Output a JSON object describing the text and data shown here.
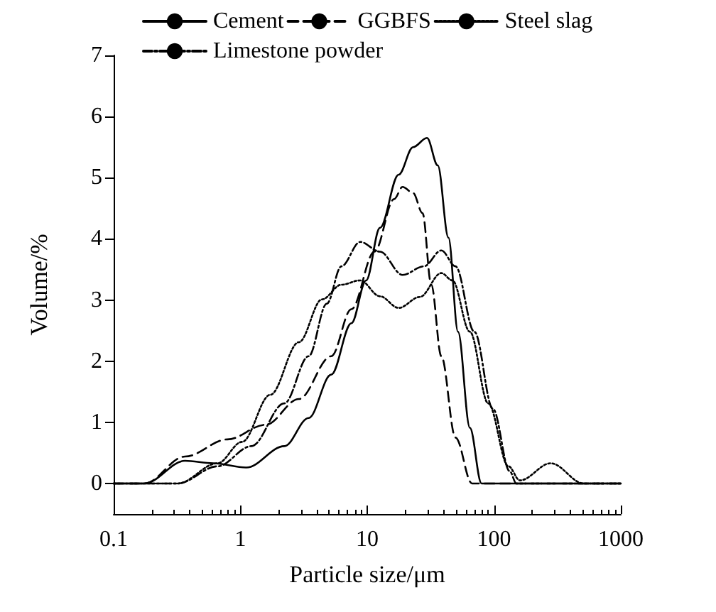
{
  "chart_data": {
    "type": "line",
    "xlabel": "Particle size/μm",
    "ylabel": "Volume/%",
    "log": "x",
    "xlim": [
      0.1,
      1000
    ],
    "xticks": [
      0.1,
      1,
      10,
      100,
      1000
    ],
    "ylim": [
      -0.5,
      7
    ],
    "yticks": [
      0,
      1,
      2,
      3,
      4,
      5,
      6,
      7
    ],
    "grid": false,
    "legend": "top",
    "marker": "none",
    "series": [
      {
        "name": "Cement",
        "color": "#000000",
        "line_style": "solid",
        "x": [
          0.1,
          0.175,
          0.365,
          0.61,
          1.11,
          2.22,
          3.45,
          5.2,
          7.5,
          9.8,
          12.6,
          17.7,
          23,
          29.6,
          36,
          43.7,
          52,
          64.5,
          79.7,
          1000
        ],
        "values": [
          0,
          0,
          0.37,
          0.33,
          0.26,
          0.61,
          1.07,
          1.78,
          2.62,
          3.32,
          4.18,
          5.05,
          5.5,
          5.65,
          5.2,
          4.02,
          2.48,
          0.91,
          0,
          0
        ]
      },
      {
        "name": "GGBFS",
        "color": "#000000",
        "line_style": "dashed",
        "x": [
          0.1,
          0.175,
          0.365,
          0.79,
          1.58,
          2.89,
          5.2,
          7.5,
          11.4,
          16.3,
          19,
          23,
          27.3,
          32,
          38.4,
          49.7,
          67,
          1000
        ],
        "values": [
          0,
          0,
          0.44,
          0.72,
          0.96,
          1.38,
          2.08,
          2.85,
          3.79,
          4.65,
          4.85,
          4.75,
          4.42,
          3.25,
          2.08,
          0.75,
          0,
          0
        ]
      },
      {
        "name": "Steel slag",
        "color": "#000000",
        "line_style": "dotted",
        "x": [
          0.1,
          0.32,
          0.66,
          1.03,
          1.72,
          2.89,
          4.4,
          6.25,
          8.8,
          12.6,
          17.7,
          26,
          38.4,
          47,
          64.5,
          90,
          130,
          160,
          280,
          510,
          1000
        ],
        "values": [
          0,
          0,
          0.33,
          0.68,
          1.45,
          2.31,
          3.01,
          3.25,
          3.32,
          3.06,
          2.87,
          3.05,
          3.44,
          3.32,
          2.48,
          1.31,
          0.28,
          0.05,
          0.33,
          0,
          0
        ]
      },
      {
        "name": "Limestone powder",
        "color": "#000000",
        "line_style": "dashdot",
        "x": [
          0.1,
          0.32,
          0.66,
          1.22,
          2.22,
          3.45,
          4.8,
          6.25,
          8.8,
          12.6,
          19,
          28,
          38.4,
          49.7,
          70,
          98,
          133,
          150,
          1000
        ],
        "values": [
          0,
          0,
          0.28,
          0.61,
          1.31,
          2.08,
          2.94,
          3.55,
          3.95,
          3.79,
          3.41,
          3.55,
          3.81,
          3.55,
          2.48,
          1.22,
          0.2,
          0,
          0
        ]
      }
    ]
  }
}
